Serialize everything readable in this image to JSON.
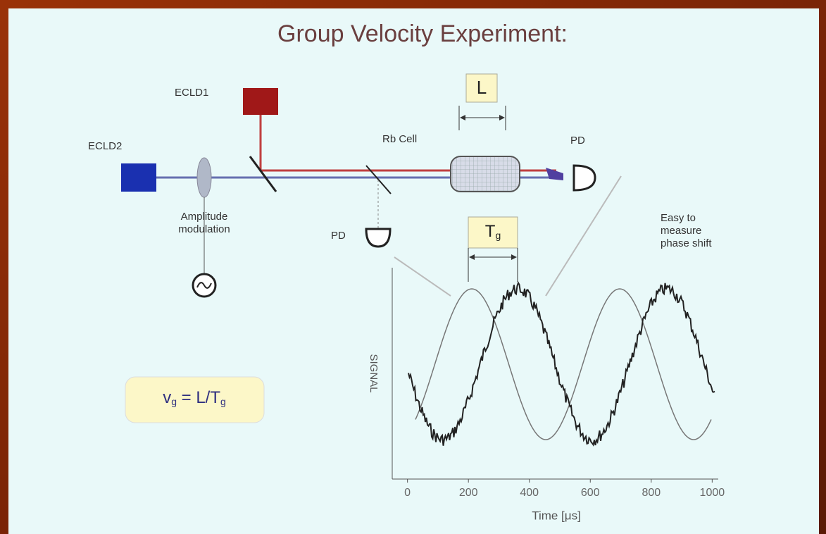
{
  "title": "Group Velocity Experiment:",
  "labels": {
    "ecld1": "ECLD1",
    "ecld2": "ECLD2",
    "rb_cell": "Rb Cell",
    "pd_main": "PD",
    "pd_ref": "PD",
    "length": "L",
    "delay": {
      "main": "T",
      "sub": "g"
    },
    "amplitude_modulation": [
      "Amplitude",
      "modulation"
    ],
    "note": [
      "Easy to",
      "measure",
      "phase shift"
    ]
  },
  "formula": {
    "v": "v",
    "v_sub": "g",
    "eq": " = L/T",
    "t_sub": "g"
  },
  "plot": {
    "y_label": "SIGNAL",
    "x_label": "Time [μs]",
    "xlim": [
      -50,
      1020
    ],
    "xticks": [
      0,
      200,
      400,
      600,
      800,
      1000
    ]
  }
}
